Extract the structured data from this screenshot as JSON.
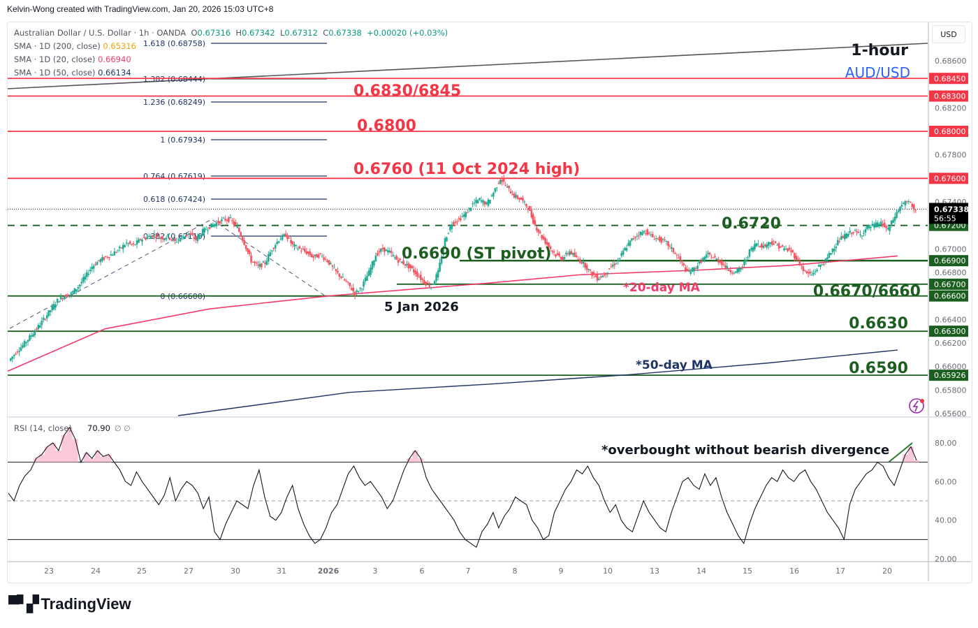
{
  "credit": "Kelvin-Wong created with TradingView.com, Jan 20, 2026 15:03 UTC+8",
  "legend": {
    "symbol_line": "Australian Dollar / U.S. Dollar · 1h · OANDA",
    "ohlc": {
      "O": "0.67316",
      "H": "0.67342",
      "L": "0.67312",
      "C": "0.67338",
      "change": "+0.00020 (+0.03%)"
    },
    "sma200_label": "SMA · 1D (200, close)",
    "sma200_value": "0.65316",
    "sma20_label": "SMA · 1D (20, close)",
    "sma20_value": "0.66940",
    "sma50_label": "SMA · 1D (50, close)",
    "sma50_value": "0.66134"
  },
  "currency_button": "USD",
  "logo_text": "TradingView",
  "colors": {
    "up": "#089981",
    "down": "#f23645",
    "resistance": "#f23645",
    "support": "#1b5e20",
    "sma20": "#f23a6b",
    "sma50": "#1e3465",
    "sma200_trend": "#555555",
    "fib": "#1e3465",
    "annotation_blue": "#2962ff",
    "last_price_bg": "#000000"
  },
  "chart_data": [
    {
      "type": "candlestick",
      "title": "AUD/USD 1-hour",
      "symbol": "Australian Dollar / U.S. Dollar · 1h · OANDA",
      "ylim": [
        0.6556,
        0.6875
      ],
      "y_ticks": [
        0.656,
        0.658,
        0.66,
        0.662,
        0.664,
        0.668,
        0.67,
        0.674,
        0.678,
        0.682,
        0.686
      ],
      "x_ticks": [
        "23",
        "24",
        "25",
        "27",
        "30",
        "31",
        "2026",
        "3",
        "6",
        "7",
        "8",
        "9",
        "10",
        "13",
        "14",
        "15",
        "16",
        "17",
        "20"
      ],
      "price_path": [
        [
          0.6605,
          0.6612,
          0.6618,
          0.6625,
          0.6632,
          0.664,
          0.6648,
          0.6656,
          0.666,
          0.6662,
          0.6668,
          0.6676,
          0.6685,
          0.669,
          0.6693,
          0.6696,
          0.67,
          0.6705,
          0.6703,
          0.6708,
          0.671,
          0.6712,
          0.6709,
          0.6711,
          0.6706,
          0.671,
          0.6713,
          0.6708,
          0.6715,
          0.6719,
          0.6722,
          0.6725
        ],
        [
          0.6725,
          0.6718,
          0.6705,
          0.669,
          0.6685,
          0.6688,
          0.67,
          0.6708,
          0.6712,
          0.6703,
          0.67,
          0.6697,
          0.6693,
          0.6695,
          0.669,
          0.6682,
          0.6676,
          0.667,
          0.6662,
          0.6668,
          0.668,
          0.6695,
          0.67,
          0.6697,
          0.6691,
          0.6688,
          0.6684,
          0.6678,
          0.6672,
          0.6668,
          0.668,
          0.6708,
          0.6722,
          0.6725,
          0.673,
          0.6738,
          0.6742,
          0.6738,
          0.6748,
          0.676,
          0.6752,
          0.6745,
          0.6742,
          0.6735,
          0.672,
          0.671,
          0.6702,
          0.6695,
          0.6692,
          0.6698,
          0.6692,
          0.6688,
          0.668,
          0.6675,
          0.6678,
          0.6685,
          0.669,
          0.67,
          0.6708,
          0.6713,
          0.6715,
          0.671,
          0.6708,
          0.6705,
          0.6698,
          0.669,
          0.668,
          0.6683,
          0.669,
          0.6695,
          0.6692,
          0.6688,
          0.6682,
          0.668,
          0.6685,
          0.6698,
          0.6705,
          0.6702,
          0.6706,
          0.6703,
          0.67,
          0.6698,
          0.669,
          0.668,
          0.6678,
          0.6685,
          0.669,
          0.67,
          0.6708,
          0.6712,
          0.6715,
          0.6712,
          0.6718,
          0.672,
          0.6722,
          0.6716,
          0.6728,
          0.6738,
          0.674,
          0.6733
        ]
      ],
      "series": [
        {
          "name": "SMA 1D (200) trend line",
          "color": "#555555",
          "from": [
            0,
            0.67125
          ],
          "to": [
            1
          ],
          "to_value": 0.68735
        },
        {
          "name": "SMA 1D (20)",
          "values_at": {
            "start": 0.6596,
            "2026": 0.666,
            "10": 0.6682,
            "20": 0.6694
          }
        },
        {
          "name": "SMA 1D (50)",
          "values_at": {
            "start": 0.6557,
            "10": 0.6593,
            "20": 0.6613
          }
        }
      ],
      "horizontal_levels": [
        {
          "price": 0.6845,
          "type": "resistance",
          "axis_label": "0.68450"
        },
        {
          "price": 0.683,
          "type": "resistance",
          "axis_label": "0.68300"
        },
        {
          "price": 0.68,
          "type": "resistance",
          "axis_label": "0.68000"
        },
        {
          "price": 0.676,
          "type": "resistance",
          "axis_label": "0.67600"
        },
        {
          "price": 0.672,
          "type": "support-dashed",
          "axis_label": "0.67200"
        },
        {
          "price": 0.669,
          "type": "support",
          "axis_label": "0.66900"
        },
        {
          "price": 0.667,
          "type": "support",
          "axis_label": "0.66700"
        },
        {
          "price": 0.666,
          "type": "support",
          "axis_label": "0.66600"
        },
        {
          "price": 0.663,
          "type": "support",
          "axis_label": "0.66300"
        },
        {
          "price": 0.65926,
          "type": "support",
          "axis_label": "0.65926"
        }
      ],
      "last_price": {
        "value": "0.67338",
        "countdown": "56:55"
      },
      "fibonacci": [
        {
          "ratio": "1.618",
          "price": "0.68758"
        },
        {
          "ratio": "1.382",
          "price": "0.68444"
        },
        {
          "ratio": "1.236",
          "price": "0.68249"
        },
        {
          "ratio": "1",
          "price": "0.67934"
        },
        {
          "ratio": "0.764",
          "price": "0.67619"
        },
        {
          "ratio": "0.618",
          "price": "0.67424"
        },
        {
          "ratio": "0.382",
          "price": "0.67110"
        },
        {
          "ratio": "0",
          "price": "0.66600"
        }
      ],
      "annotations": {
        "timeframe": "1-hour",
        "pair": "AUD/USD",
        "r3": "0.6830/6845",
        "r2": "0.6800",
        "r1": "0.6760 (11 Oct 2024 high)",
        "pivot_near": "0.6720",
        "pivot": "0.6690 (ST pivot)",
        "ma20": "*20-day MA",
        "s1": "0.6670/6660",
        "s1_date": "5 Jan 2026",
        "s2": "0.6630",
        "ma50": "*50-day MA",
        "s3": "0.6590"
      }
    },
    {
      "type": "line",
      "title": "RSI (14, close)",
      "legend": "RSI (14, close)",
      "value": "70.90",
      "extra": "∅ ∅",
      "ylim": [
        20,
        90
      ],
      "y_ticks": [
        "80.00",
        "60.00",
        "40.00",
        "20.00"
      ],
      "bands": {
        "upper": 70,
        "middle": 50,
        "lower": 30
      },
      "values": [
        54,
        50,
        58,
        63,
        66,
        72,
        74,
        78,
        80,
        76,
        84,
        88,
        82,
        70,
        75,
        72,
        76,
        73,
        74,
        70,
        66,
        60,
        58,
        65,
        60,
        56,
        52,
        48,
        53,
        62,
        50,
        56,
        60,
        58,
        54,
        46,
        52,
        34,
        30,
        38,
        44,
        50,
        48,
        46,
        58,
        66,
        52,
        42,
        40,
        44,
        52,
        58,
        46,
        38,
        32,
        28,
        30,
        36,
        44,
        48,
        56,
        64,
        68,
        62,
        58,
        60,
        56,
        52,
        46,
        50,
        58,
        66,
        72,
        76,
        72,
        62,
        56,
        52,
        48,
        44,
        40,
        34,
        30,
        28,
        26,
        34,
        38,
        44,
        36,
        42,
        46,
        52,
        50,
        48,
        40,
        36,
        30,
        32,
        44,
        50,
        56,
        60,
        66,
        64,
        68,
        62,
        58,
        50,
        44,
        48,
        40,
        36,
        34,
        42,
        50,
        44,
        40,
        36,
        34,
        44,
        52,
        60,
        62,
        58,
        56,
        64,
        58,
        62,
        52,
        44,
        38,
        32,
        28,
        38,
        46,
        52,
        58,
        62,
        60,
        66,
        62,
        60,
        64,
        66,
        60,
        56,
        50,
        44,
        40,
        36,
        30,
        48,
        56,
        60,
        64,
        66,
        70,
        68,
        62,
        58,
        66,
        74,
        78,
        71
      ]
    }
  ],
  "chart_annotations": {
    "rsi_note": "*overbought without bearish divergence"
  }
}
